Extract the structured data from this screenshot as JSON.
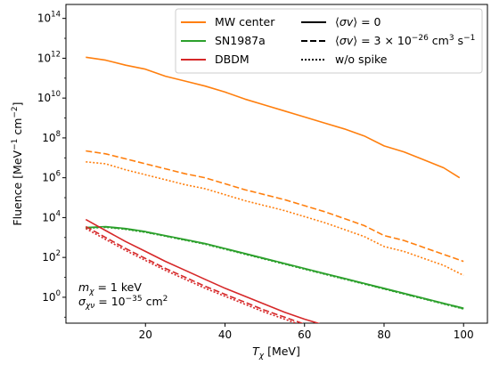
{
  "chart_data": {
    "type": "line",
    "title": "",
    "xlabel": "T_χ [MeV]",
    "ylabel": "Fluence [MeV⁻¹ cm⁻²]",
    "xlim": [
      0,
      106
    ],
    "ylim_log10": [
      -1.3,
      14.7
    ],
    "y_scale": "log",
    "x_ticks": [
      20,
      40,
      60,
      80,
      100
    ],
    "x_tick_labels": [
      "20",
      "40",
      "60",
      "80",
      "100"
    ],
    "y_ticks_log10": [
      0,
      2,
      4,
      6,
      8,
      10,
      12,
      14
    ],
    "y_tick_labels": [
      "10",
      "10",
      "10",
      "10",
      "10",
      "10",
      "10",
      "10"
    ],
    "y_tick_exponents": [
      "0",
      "2",
      "4",
      "6",
      "8",
      "10",
      "12",
      "14"
    ],
    "grid": false,
    "legend_placement": "top-right",
    "legend": {
      "sources": [
        {
          "label": "MW center",
          "color": "#ff7f0e"
        },
        {
          "label": "SN1987a",
          "color": "#2ca02c"
        },
        {
          "label": "DBDM",
          "color": "#d62728"
        }
      ],
      "styles": [
        {
          "label": "⟨σv⟩ = 0",
          "dash": "solid"
        },
        {
          "label": "⟨σv⟩ = 3 × 10⁻²⁶ cm³ s⁻¹",
          "dash": "dashed"
        },
        {
          "label": "w/o spike",
          "dash": "dotted"
        }
      ]
    },
    "annotation": {
      "line1": "m_χ = 1 keV",
      "line2": "σ_χν = 10⁻³⁵ cm²"
    },
    "series_log10": [
      {
        "source": "MW center",
        "style": "solid",
        "color": "#ff7f0e",
        "x": [
          5,
          10,
          15,
          20,
          25,
          30,
          35,
          40,
          45,
          50,
          55,
          60,
          65,
          70,
          75,
          80,
          85,
          90,
          95,
          99
        ],
        "y": [
          12.05,
          11.9,
          11.65,
          11.45,
          11.1,
          10.85,
          10.6,
          10.3,
          9.95,
          9.65,
          9.35,
          9.05,
          8.75,
          8.45,
          8.1,
          7.6,
          7.3,
          6.9,
          6.5,
          6.0
        ]
      },
      {
        "source": "MW center",
        "style": "dashed",
        "color": "#ff7f0e",
        "x": [
          5,
          10,
          15,
          20,
          25,
          30,
          35,
          40,
          45,
          50,
          55,
          60,
          65,
          70,
          75,
          80,
          85,
          90,
          95,
          100
        ],
        "y": [
          7.35,
          7.2,
          6.95,
          6.7,
          6.45,
          6.2,
          6.0,
          5.7,
          5.4,
          5.15,
          4.9,
          4.6,
          4.3,
          3.95,
          3.6,
          3.1,
          2.85,
          2.5,
          2.15,
          1.8
        ]
      },
      {
        "source": "MW center",
        "style": "dotted",
        "color": "#ff7f0e",
        "x": [
          5,
          10,
          15,
          20,
          25,
          30,
          35,
          40,
          45,
          50,
          55,
          60,
          65,
          70,
          75,
          80,
          85,
          90,
          95,
          100
        ],
        "y": [
          6.8,
          6.7,
          6.4,
          6.15,
          5.9,
          5.65,
          5.45,
          5.15,
          4.85,
          4.6,
          4.35,
          4.05,
          3.75,
          3.4,
          3.05,
          2.55,
          2.3,
          1.95,
          1.6,
          1.1
        ]
      },
      {
        "source": "SN1987a",
        "style": "solid",
        "color": "#2ca02c",
        "x": [
          5,
          10,
          15,
          20,
          25,
          30,
          35,
          40,
          45,
          50,
          55,
          60,
          65,
          70,
          75,
          80,
          85,
          90,
          95,
          100
        ],
        "y": [
          3.5,
          3.55,
          3.45,
          3.3,
          3.1,
          2.9,
          2.7,
          2.45,
          2.2,
          1.95,
          1.7,
          1.45,
          1.2,
          0.95,
          0.7,
          0.45,
          0.2,
          -0.05,
          -0.3,
          -0.55
        ]
      },
      {
        "source": "SN1987a",
        "style": "dashed",
        "color": "#2ca02c",
        "x": [
          5,
          10,
          15,
          20,
          25,
          30,
          35,
          40,
          45,
          50,
          55,
          60,
          65,
          70,
          75,
          80,
          85,
          90,
          95,
          100
        ],
        "y": [
          3.48,
          3.53,
          3.43,
          3.28,
          3.08,
          2.88,
          2.68,
          2.43,
          2.18,
          1.93,
          1.68,
          1.43,
          1.18,
          0.93,
          0.68,
          0.43,
          0.18,
          -0.07,
          -0.32,
          -0.57
        ]
      },
      {
        "source": "SN1987a",
        "style": "dotted",
        "color": "#2ca02c",
        "x": [
          5,
          10,
          15,
          20,
          25,
          30,
          35,
          40,
          45,
          50,
          55,
          60,
          65,
          70,
          75,
          80,
          85,
          90,
          95,
          100
        ],
        "y": [
          3.46,
          3.51,
          3.41,
          3.26,
          3.06,
          2.86,
          2.66,
          2.41,
          2.16,
          1.91,
          1.66,
          1.41,
          1.16,
          0.91,
          0.66,
          0.41,
          0.16,
          -0.09,
          -0.34,
          -0.59
        ]
      },
      {
        "source": "DBDM",
        "style": "solid",
        "color": "#d62728",
        "x": [
          5,
          10,
          15,
          20,
          25,
          30,
          35,
          40,
          45,
          50,
          55,
          60,
          65,
          70,
          74
        ],
        "y": [
          3.9,
          3.35,
          2.8,
          2.3,
          1.8,
          1.35,
          0.9,
          0.45,
          0.05,
          -0.35,
          -0.75,
          -1.1,
          -1.4,
          -1.7,
          -1.9
        ]
      },
      {
        "source": "DBDM",
        "style": "dashed",
        "color": "#d62728",
        "x": [
          5,
          10,
          15,
          20,
          25,
          30,
          35,
          40,
          45,
          50,
          55,
          60,
          65,
          70
        ],
        "y": [
          3.55,
          3.0,
          2.45,
          1.95,
          1.45,
          1.0,
          0.55,
          0.15,
          -0.25,
          -0.65,
          -1.0,
          -1.35,
          -1.65,
          -1.95
        ]
      },
      {
        "source": "DBDM",
        "style": "dotted",
        "color": "#d62728",
        "x": [
          5,
          10,
          15,
          20,
          25,
          30,
          35,
          40,
          45,
          50,
          55,
          60,
          65,
          70
        ],
        "y": [
          3.45,
          2.9,
          2.35,
          1.85,
          1.35,
          0.9,
          0.45,
          0.05,
          -0.35,
          -0.75,
          -1.1,
          -1.45,
          -1.75,
          -2.05
        ]
      }
    ]
  }
}
